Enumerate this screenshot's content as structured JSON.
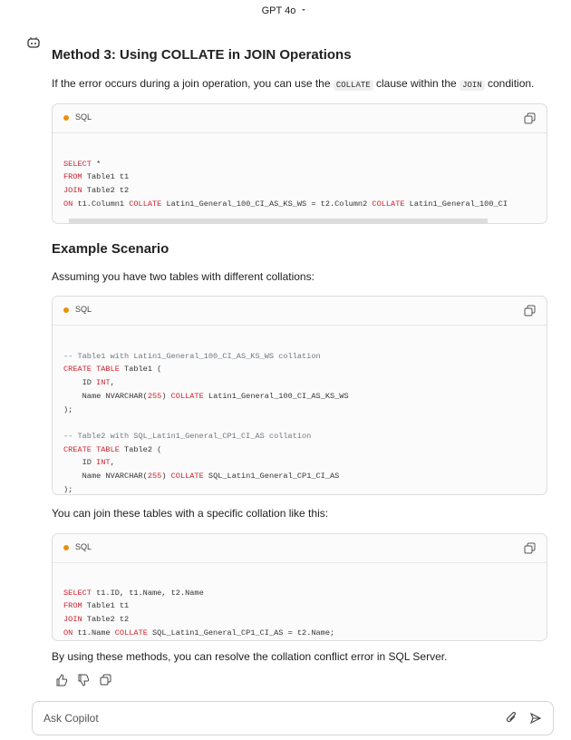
{
  "header": {
    "model": "GPT 4o"
  },
  "message": {
    "heading": "Method 3: Using COLLATE in JOIN Operations",
    "intro": [
      "If the error occurs during a join operation, you can use the ",
      "COLLATE",
      " clause within the ",
      "JOIN",
      " condition."
    ],
    "code_blocks": [
      {
        "language": "SQL",
        "lines": [
          [
            "SELECT",
            " *"
          ],
          [
            "FROM",
            " Table1 t1"
          ],
          [
            "JOIN",
            " Table2 t2"
          ],
          [
            "ON",
            " t1.Column1 ",
            "COLLATE",
            " Latin1_General_100_CI_AS_KS_WS = t2.Column2 ",
            "COLLATE",
            " Latin1_General_100_CI"
          ]
        ]
      },
      {
        "language": "SQL",
        "lines": [
          [
            "-- Table1 with Latin1_General_100_CI_AS_KS_WS collation"
          ],
          [
            "CREATE TABLE",
            " Table1 ("
          ],
          [
            "    ID ",
            "INT",
            ","
          ],
          [
            "    Name NVARCHAR(",
            "255",
            ") ",
            "COLLATE",
            " Latin1_General_100_CI_AS_KS_WS"
          ],
          [
            ");"
          ],
          [
            "-- Table2 with SQL_Latin1_General_CP1_CI_AS collation"
          ],
          [
            "CREATE TABLE",
            " Table2 ("
          ],
          [
            "    ID ",
            "INT",
            ","
          ],
          [
            "    Name NVARCHAR(",
            "255",
            ") ",
            "COLLATE",
            " SQL_Latin1_General_CP1_CI_AS"
          ],
          [
            ");"
          ]
        ]
      },
      {
        "language": "SQL",
        "lines": [
          [
            "SELECT",
            " t1.ID, t1.Name, t2.Name"
          ],
          [
            "FROM",
            " Table1 t1"
          ],
          [
            "JOIN",
            " Table2 t2"
          ],
          [
            "ON",
            " t1.Name ",
            "COLLATE",
            " SQL_Latin1_General_CP1_CI_AS = t2.Name;"
          ]
        ]
      }
    ],
    "subheading": "Example Scenario",
    "scenario_text": "Assuming you have two tables with different collations:",
    "join_text": "You can join these tables with a specific collation like this:",
    "conclusion": "By using these methods, you can resolve the collation conflict error in SQL Server."
  },
  "input": {
    "placeholder": "Ask Copilot"
  }
}
